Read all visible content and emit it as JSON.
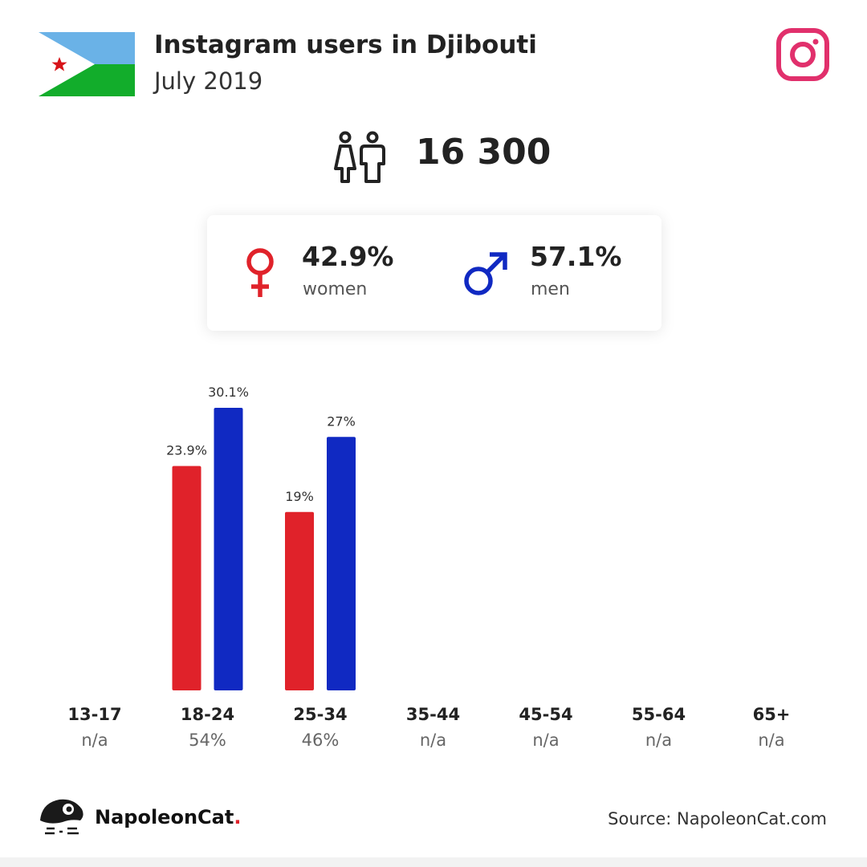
{
  "header": {
    "title": "Instagram users in Djibouti",
    "subtitle": "July 2019",
    "flag_icon": "djibouti-flag",
    "platform_icon": "instagram-icon"
  },
  "total": {
    "value": "16 300",
    "icon": "people-icon"
  },
  "gender": {
    "women": {
      "pct": "42.9%",
      "label": "women",
      "icon": "female-symbol-icon",
      "color": "#e0222a"
    },
    "men": {
      "pct": "57.1%",
      "label": "men",
      "icon": "male-symbol-icon",
      "color": "#1029c2"
    }
  },
  "chart_data": {
    "type": "bar",
    "categories": [
      "13-17",
      "18-24",
      "25-34",
      "35-44",
      "45-54",
      "55-64",
      "65+"
    ],
    "category_totals": [
      "n/a",
      "54%",
      "46%",
      "n/a",
      "n/a",
      "n/a",
      "n/a"
    ],
    "series": [
      {
        "name": "women",
        "color": "#e0222a",
        "values": [
          null,
          23.9,
          19,
          null,
          null,
          null,
          null
        ],
        "labels": [
          "",
          "23.9%",
          "19%",
          "",
          "",
          "",
          ""
        ]
      },
      {
        "name": "men",
        "color": "#1029c2",
        "values": [
          null,
          30.1,
          27,
          null,
          null,
          null,
          null
        ],
        "labels": [
          "",
          "30.1%",
          "27%",
          "",
          "",
          "",
          ""
        ]
      }
    ],
    "title": "",
    "xlabel": "",
    "ylabel": "",
    "ylim": [
      0,
      30.1
    ],
    "grid": false,
    "legend": "none"
  },
  "footer": {
    "brand": "NapoleonCat",
    "brand_dot": ".",
    "source": "Source: NapoleonCat.com",
    "logo_icon": "napoleoncat-logo-icon"
  }
}
